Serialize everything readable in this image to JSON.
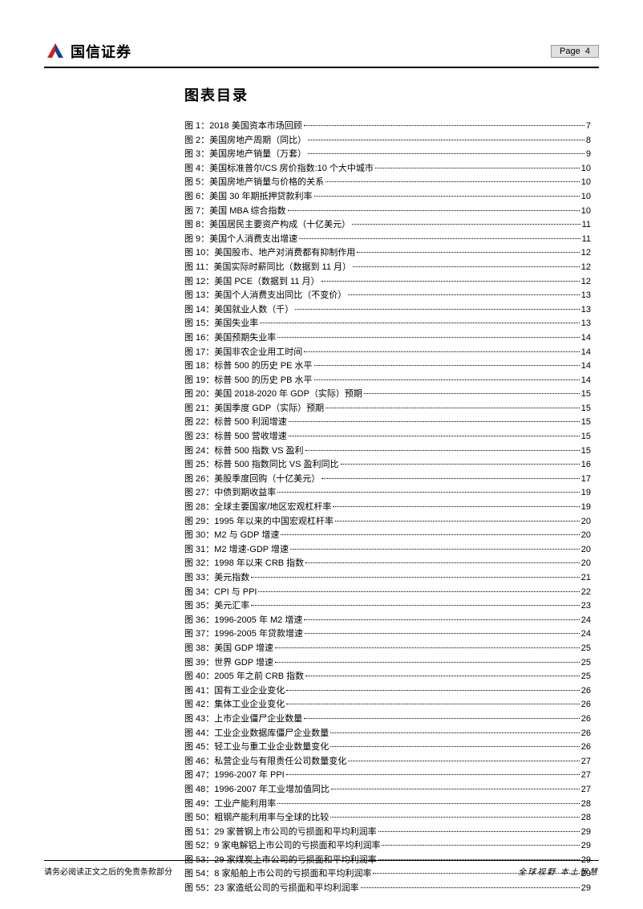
{
  "header": {
    "company": "国信证券",
    "page_label": "Page",
    "page_number": "4",
    "logo_colors": {
      "red": "#d32020",
      "blue": "#1040a0"
    }
  },
  "toc": {
    "title": "图表目录",
    "items": [
      {
        "label": "图 1：2018 美国资本市场回顾",
        "page": "7"
      },
      {
        "label": "图 2：美国房地产周期（同比）",
        "page": "8"
      },
      {
        "label": "图 3：美国房地产销量（万套）",
        "page": "9"
      },
      {
        "label": "图 4：美国标准普尔/CS 房价指数:10 个大中城市",
        "page": "10"
      },
      {
        "label": "图 5：美国房地产销量与价格的关系",
        "page": "10"
      },
      {
        "label": "图 6：美国 30 年期抵押贷款利率",
        "page": "10"
      },
      {
        "label": "图 7：美国 MBA 综合指数",
        "page": "10"
      },
      {
        "label": "图 8：美国居民主要资产构成（十亿美元）",
        "page": "11"
      },
      {
        "label": "图 9：美国个人消费支出增速",
        "page": "11"
      },
      {
        "label": "图 10：美国股市、地产对消费都有抑制作用",
        "page": "12"
      },
      {
        "label": "图 11：美国实际时薪同比（数据到 11 月）",
        "page": "12"
      },
      {
        "label": "图 12：美国 PCE（数据到 11 月）",
        "page": "12"
      },
      {
        "label": "图 13：美国个人消费支出同比（不变价）",
        "page": "13"
      },
      {
        "label": "图 14：美国就业人数（千）",
        "page": "13"
      },
      {
        "label": "图 15：美国失业率",
        "page": "13"
      },
      {
        "label": "图 16：美国预期失业率",
        "page": "14"
      },
      {
        "label": "图 17：美国非农企业用工时间",
        "page": "14"
      },
      {
        "label": "图 18：标普 500 的历史 PE 水平",
        "page": "14"
      },
      {
        "label": "图 19：标普 500 的历史 PB 水平",
        "page": "14"
      },
      {
        "label": "图 20：美国 2018-2020 年 GDP（实际）预期",
        "page": "15"
      },
      {
        "label": "图 21：美国季度 GDP（实际）预期",
        "page": "15"
      },
      {
        "label": "图 22：标普 500 利润增速",
        "page": "15"
      },
      {
        "label": "图 23：标普 500 营收增速",
        "page": "15"
      },
      {
        "label": "图 24：标普 500 指数 VS 盈利",
        "page": "15"
      },
      {
        "label": "图 25：标普 500 指数同比 VS 盈利同比",
        "page": "16"
      },
      {
        "label": "图 26：美股季度回购（十亿美元）",
        "page": "17"
      },
      {
        "label": "图 27：中债到期收益率",
        "page": "19"
      },
      {
        "label": "图 28：全球主要国家/地区宏观杠杆率",
        "page": "19"
      },
      {
        "label": "图 29：1995 年以来的中国宏观杠杆率",
        "page": "20"
      },
      {
        "label": "图 30：M2 与 GDP 增速",
        "page": "20"
      },
      {
        "label": "图 31：M2 增速-GDP 增速",
        "page": "20"
      },
      {
        "label": "图 32：1998 年以来 CRB 指数",
        "page": "20"
      },
      {
        "label": "图 33：美元指数",
        "page": "21"
      },
      {
        "label": "图 34：CPI 与 PPI",
        "page": "22"
      },
      {
        "label": "图 35：美元汇率",
        "page": "23"
      },
      {
        "label": "图 36：1996-2005 年 M2 增速",
        "page": "24"
      },
      {
        "label": "图 37：1996-2005 年贷款增速",
        "page": "24"
      },
      {
        "label": "图 38：美国 GDP 增速",
        "page": "25"
      },
      {
        "label": "图 39：世界 GDP 增速",
        "page": "25"
      },
      {
        "label": "图 40：2005 年之前 CRB 指数",
        "page": "25"
      },
      {
        "label": "图 41：国有工业企业变化",
        "page": "26"
      },
      {
        "label": "图 42：集体工业企业变化",
        "page": "26"
      },
      {
        "label": "图 43：上市企业僵尸企业数量",
        "page": "26"
      },
      {
        "label": "图 44：工业企业数据库僵尸企业数量",
        "page": "26"
      },
      {
        "label": "图 45：轻工业与重工业企业数量变化",
        "page": "26"
      },
      {
        "label": "图 46：私营企业与有限责任公司数量变化",
        "page": "27"
      },
      {
        "label": "图 47：1996-2007 年 PPI",
        "page": "27"
      },
      {
        "label": "图 48：1996-2007 年工业增加值同比",
        "page": "27"
      },
      {
        "label": "图 49：工业产能利用率",
        "page": "28"
      },
      {
        "label": "图 50：粗钢产能利用率与全球的比较",
        "page": "28"
      },
      {
        "label": "图 51：29 家普钢上市公司的亏损面和平均利润率",
        "page": "29"
      },
      {
        "label": "图 52：9 家电解铝上市公司的亏损面和平均利润率",
        "page": "29"
      },
      {
        "label": "图 53：29 家煤炭上市公司的亏损面和平均利润率",
        "page": "29"
      },
      {
        "label": "图 54：8 家船舶上市公司的亏损面和平均利润率",
        "page": "29"
      },
      {
        "label": "图 55：23 家造纸公司的亏损面和平均利润率",
        "page": "29"
      }
    ]
  },
  "footer": {
    "disclaimer": "请务必阅读正文之后的免责条款部分",
    "slogan": "全球视野  本土智慧"
  }
}
